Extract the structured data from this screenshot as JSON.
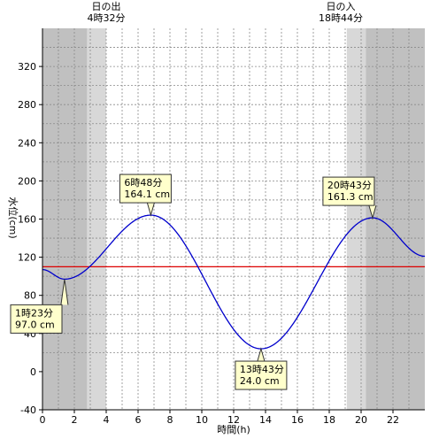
{
  "chart_data": {
    "type": "line",
    "title": "",
    "xlabel": "時間(h)",
    "ylabel": "水位(cm)",
    "xlim": [
      0,
      24
    ],
    "ylim": [
      -40,
      360
    ],
    "x_ticks": [
      0,
      2,
      4,
      6,
      8,
      10,
      12,
      14,
      16,
      18,
      20,
      22
    ],
    "y_ticks": [
      -40,
      0,
      40,
      80,
      120,
      160,
      200,
      240,
      280,
      320
    ],
    "grid": true,
    "reference_line": {
      "y": 110,
      "color": "#dd0000"
    },
    "series": [
      {
        "color": "#0000cc",
        "x": [
          0,
          1.383,
          6.8,
          13.717,
          20.717,
          24
        ],
        "y": [
          107,
          97.0,
          164.1,
          24.0,
          161.3,
          121
        ]
      }
    ],
    "sun": {
      "sunrise": {
        "label_top": "日の出",
        "label_time": "4時32分",
        "hour": 4.533
      },
      "sunset": {
        "label_top": "日の入",
        "label_time": "18時44分",
        "hour": 18.733
      }
    },
    "shading": [
      {
        "from": 0,
        "to": 2.8,
        "color": "#c0c0c0"
      },
      {
        "from": 2.8,
        "to": 4.0,
        "color": "#d8d8d8"
      },
      {
        "from": 4.0,
        "to": 19.1,
        "color": "#ffffff"
      },
      {
        "from": 19.1,
        "to": 20.3,
        "color": "#d8d8d8"
      },
      {
        "from": 20.3,
        "to": 24,
        "color": "#c0c0c0"
      }
    ],
    "annotations": [
      {
        "time": "1時23分",
        "value": "97.0 cm",
        "x": 1.383,
        "y": 97.0,
        "pos": "below"
      },
      {
        "time": "6時48分",
        "value": "164.1 cm",
        "x": 6.8,
        "y": 164.1,
        "pos": "above"
      },
      {
        "time": "13時43分",
        "value": "24.0 cm",
        "x": 13.717,
        "y": 24.0,
        "pos": "below"
      },
      {
        "time": "20時43分",
        "value": "161.3 cm",
        "x": 20.717,
        "y": 161.3,
        "pos": "above"
      }
    ]
  }
}
